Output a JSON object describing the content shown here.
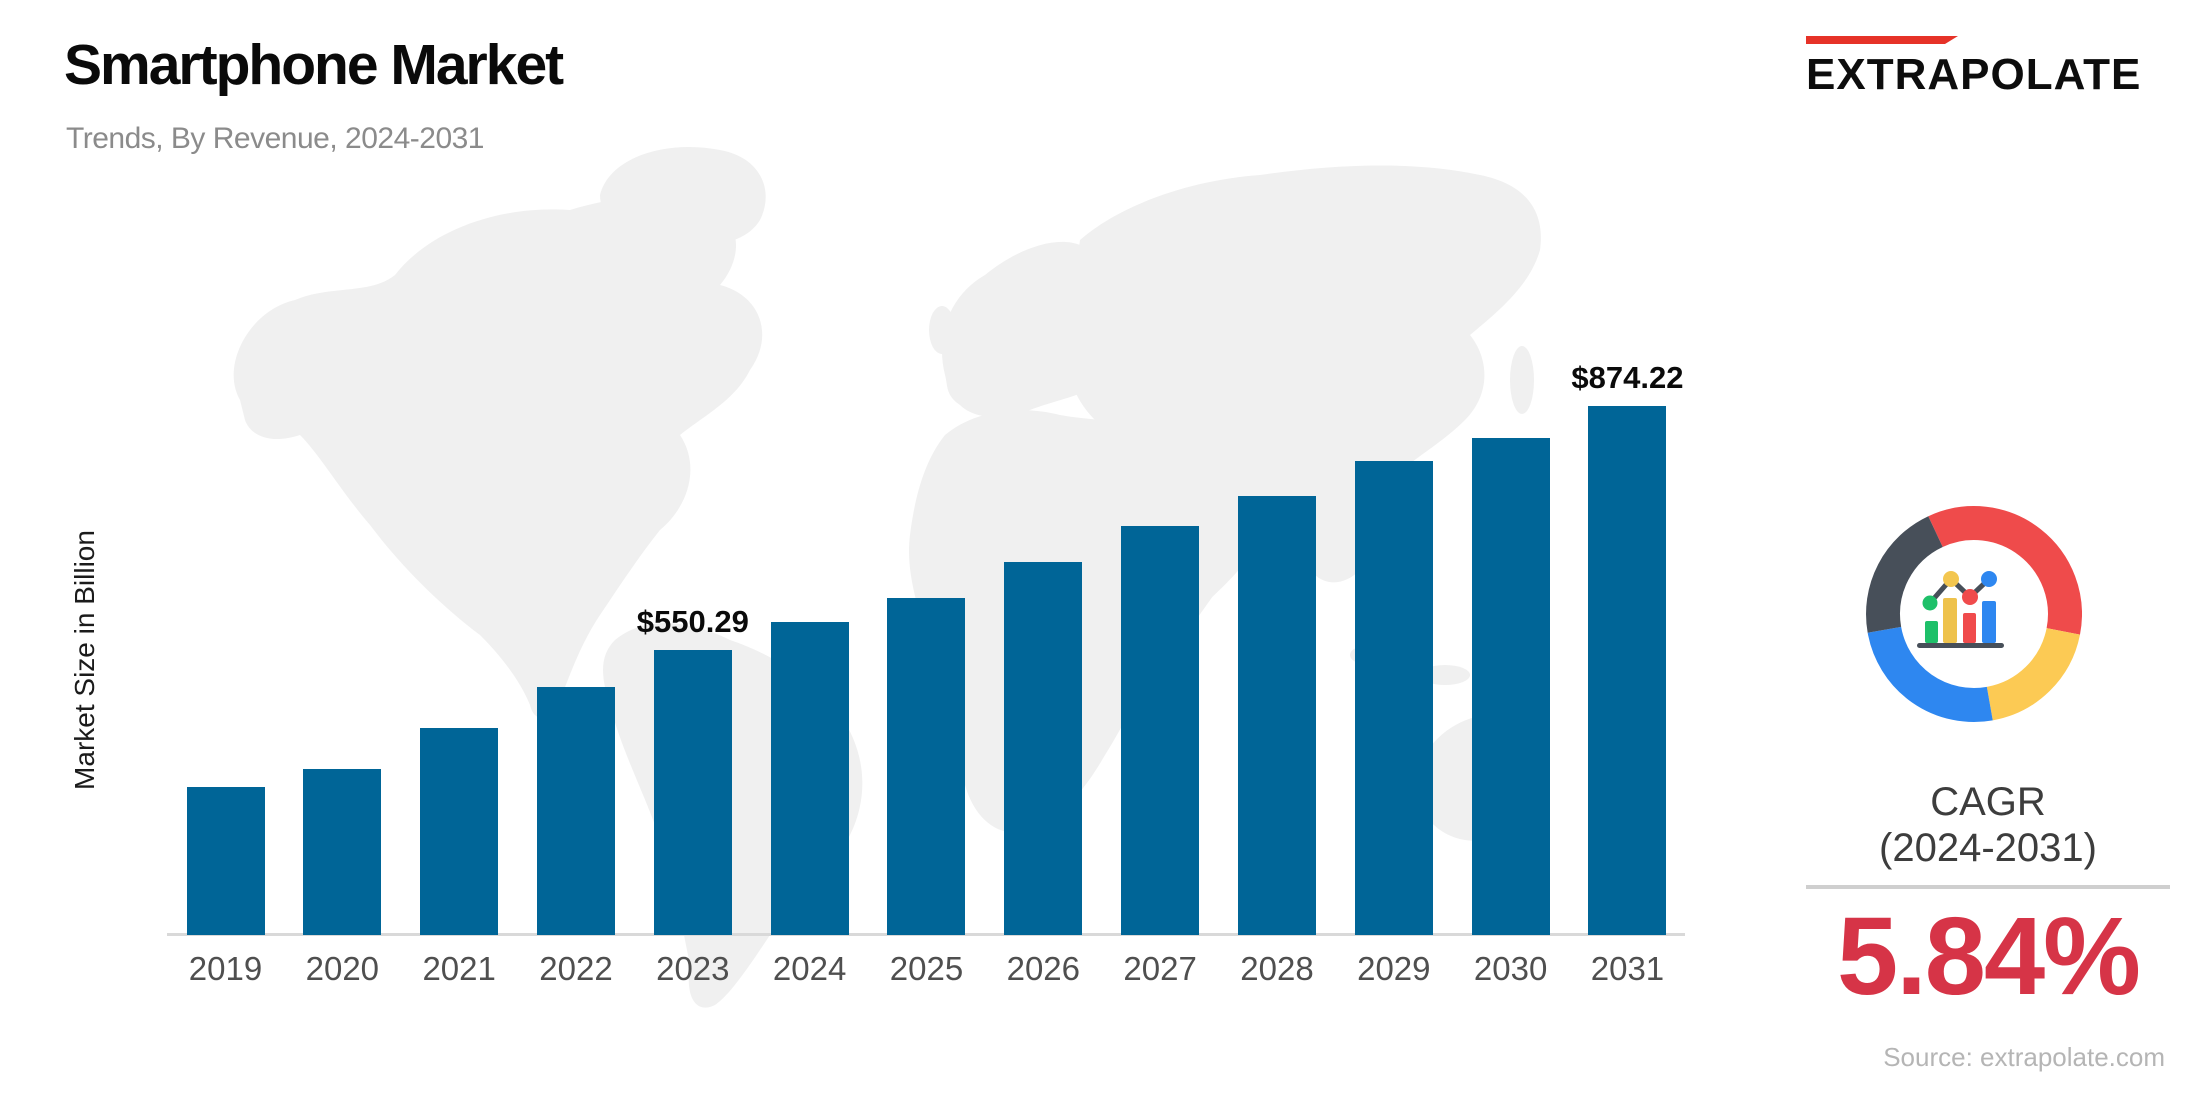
{
  "header": {
    "title": "Smartphone Market",
    "subtitle": "Trends, By Revenue, 2024-2031"
  },
  "logo": {
    "text": "EXTRAPOLATE",
    "accent_color": "#e63228"
  },
  "chart_data": {
    "type": "bar",
    "title": "Smartphone Market",
    "subtitle": "Trends, By Revenue, 2024-2031",
    "xlabel": "",
    "ylabel": "Market Size in Billion",
    "unit": "USD Billion",
    "bar_color": "#006597",
    "grid": false,
    "legend": "none",
    "categories": [
      "2019",
      "2020",
      "2021",
      "2022",
      "2023",
      "2024",
      "2025",
      "2026",
      "2027",
      "2028",
      "2029",
      "2030",
      "2031"
    ],
    "values": [
      368,
      392,
      447,
      501,
      550.29,
      587.6,
      619,
      667,
      715,
      755,
      801,
      832,
      874.22
    ],
    "labeled_points": [
      {
        "year": "2023",
        "label": "$550.29"
      },
      {
        "year": "2031",
        "label": "$874.22"
      }
    ]
  },
  "kpi": {
    "cagr_label": "CAGR",
    "cagr_period": "(2024-2031)",
    "cagr_value": "5.84%",
    "value_color": "#d63447"
  },
  "donut_icon": {
    "segment_colors": {
      "red": "#ef4b4b",
      "yellow": "#fcca54",
      "blue": "#2e87f0",
      "slate": "#474f59"
    },
    "mini_chart_colors": {
      "green": "#1ec069",
      "yellow": "#eec24c",
      "red": "#f04b4c",
      "blue": "#2e87f0"
    }
  },
  "footer": {
    "source": "Source: extrapolate.com"
  }
}
